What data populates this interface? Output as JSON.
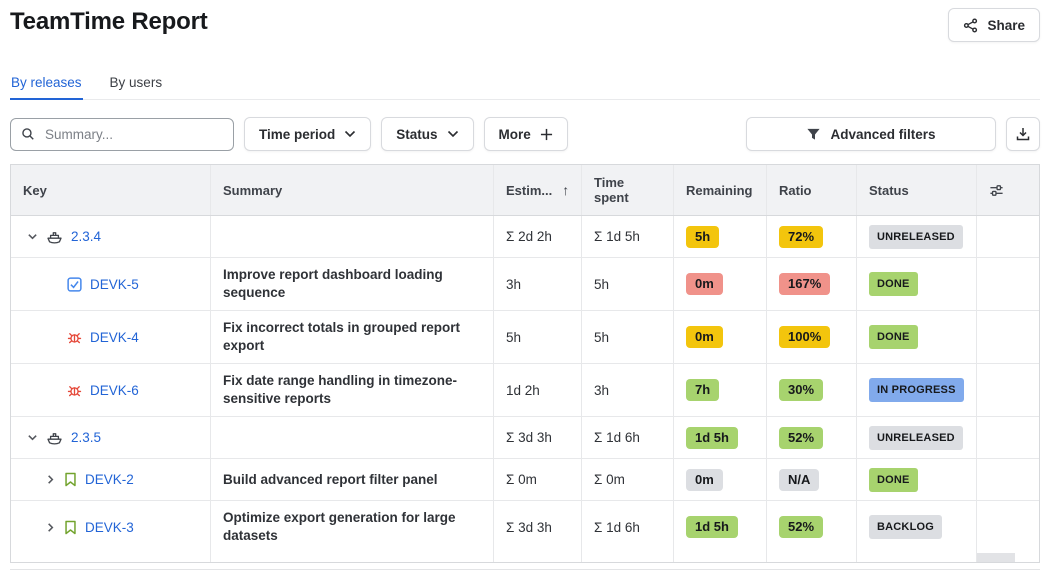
{
  "page": {
    "title": "TeamTime Report"
  },
  "header": {
    "share_label": "Share"
  },
  "tabs": {
    "by_releases": "By releases",
    "by_users": "By users"
  },
  "filters": {
    "search_placeholder": "Summary...",
    "time_period_label": "Time period",
    "status_label": "Status",
    "more_label": "More",
    "advanced_filters_label": "Advanced filters"
  },
  "table": {
    "columns": {
      "key": "Key",
      "summary": "Summary",
      "estimated": "Estim...",
      "time_spent": "Time spent",
      "remaining": "Remaining",
      "ratio": "Ratio",
      "status": "Status"
    },
    "sort": {
      "column": "estimated",
      "indicator": "↑"
    },
    "rows": [
      {
        "level": "release",
        "expander": "down",
        "icon": "release-icon",
        "key": "2.3.4",
        "summary": "",
        "estimated": "Σ 2d 2h",
        "time_spent": "Σ 1d 5h",
        "remaining": {
          "text": "5h",
          "color": "gold"
        },
        "ratio": {
          "text": "72%",
          "color": "gold"
        },
        "status": {
          "text": "UNRELEASED",
          "color": "gray"
        }
      },
      {
        "level": "issue",
        "expander": null,
        "icon": "task-icon",
        "key": "DEVK-5",
        "summary": "Improve report dashboard loading sequence",
        "estimated": "3h",
        "time_spent": "5h",
        "remaining": {
          "text": "0m",
          "color": "red"
        },
        "ratio": {
          "text": "167%",
          "color": "red"
        },
        "status": {
          "text": "DONE",
          "color": "green"
        }
      },
      {
        "level": "issue",
        "expander": null,
        "icon": "bug-icon",
        "key": "DEVK-4",
        "summary": "Fix incorrect totals in grouped report export",
        "estimated": "5h",
        "time_spent": "5h",
        "remaining": {
          "text": "0m",
          "color": "gold"
        },
        "ratio": {
          "text": "100%",
          "color": "gold"
        },
        "status": {
          "text": "DONE",
          "color": "green"
        }
      },
      {
        "level": "issue",
        "expander": null,
        "icon": "bug-icon",
        "key": "DEVK-6",
        "summary": "Fix date range handling in timezone-sensitive reports",
        "estimated": "1d 2h",
        "time_spent": "3h",
        "remaining": {
          "text": "7h",
          "color": "green"
        },
        "ratio": {
          "text": "30%",
          "color": "green"
        },
        "status": {
          "text": "IN PROGRESS",
          "color": "blue"
        }
      },
      {
        "level": "release",
        "expander": "down",
        "icon": "release-icon",
        "key": "2.3.5",
        "summary": "",
        "estimated": "Σ 3d 3h",
        "time_spent": "Σ 1d 6h",
        "remaining": {
          "text": "1d 5h",
          "color": "green"
        },
        "ratio": {
          "text": "52%",
          "color": "green"
        },
        "status": {
          "text": "UNRELEASED",
          "color": "gray"
        }
      },
      {
        "level": "story",
        "expander": "right",
        "icon": "story-icon",
        "key": "DEVK-2",
        "summary": "Build advanced report filter panel",
        "estimated": "Σ 0m",
        "time_spent": "Σ 0m",
        "remaining": {
          "text": "0m",
          "color": "gray"
        },
        "ratio": {
          "text": "N/A",
          "color": "gray"
        },
        "status": {
          "text": "DONE",
          "color": "green"
        }
      },
      {
        "level": "story",
        "expander": "right",
        "icon": "story-icon",
        "key": "DEVK-3",
        "summary": "Optimize export generation for large datasets",
        "estimated": "Σ 3d 3h",
        "time_spent": "Σ 1d 6h",
        "remaining": {
          "text": "1d 5h",
          "color": "green"
        },
        "ratio": {
          "text": "52%",
          "color": "green"
        },
        "status": {
          "text": "BACKLOG",
          "color": "gray"
        }
      }
    ]
  },
  "colors": {
    "accent_blue": "#2264d6",
    "badge_gold": "#f3c50d",
    "badge_red": "#f0928a",
    "badge_green": "#a7d36e",
    "badge_blue": "#81aaec",
    "badge_gray": "#dcdee2",
    "bug_red": "#e5493a",
    "story_green": "#72a32d",
    "task_blue": "#4688ec"
  }
}
